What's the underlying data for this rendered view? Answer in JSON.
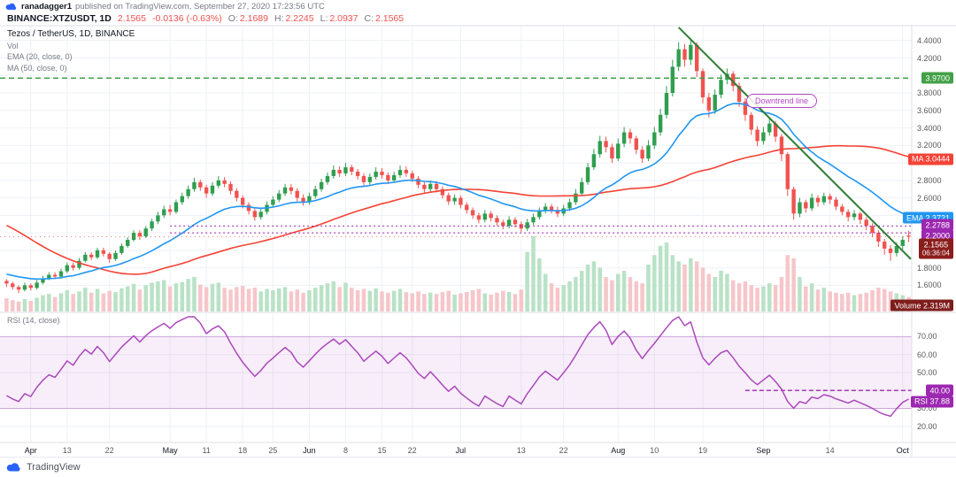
{
  "header": {
    "byline_user": "ranadagger1",
    "byline_rest": "published on TradingView.com, September 27, 2020 17:23:56 UTC",
    "symbol": "BINANCE:XTZUSDT, 1D",
    "last_price": "2.1565",
    "change": "-0.0136 (-0.63%)",
    "o_label": "O:",
    "o": "2.1689",
    "h_label": "H:",
    "h": "2.2245",
    "l_label": "L:",
    "l": "2.0937",
    "c_label": "C:",
    "c": "2.1565"
  },
  "legend": {
    "title": "Tezos / TetherUS, 1D, BINANCE",
    "volume": "Vol",
    "ema": "EMA (20, close, 0)",
    "ma": "MA (50, close, 0)",
    "rsi": "RSI (14, close)"
  },
  "annotations": {
    "downtrend_label": "Downtrend line"
  },
  "footer": {
    "logo_text": "TradingView"
  },
  "chart_data": {
    "type": "candlestick",
    "symbol": "BINANCE:XTZUSDT",
    "timeframe": "1D",
    "price_ylim": [
      1.29,
      4.58
    ],
    "rsi_ylim": [
      12,
      82
    ],
    "price_ticks": [
      4.4,
      4.2,
      3.8,
      3.6,
      3.4,
      3.2,
      2.8,
      2.6,
      2.4,
      1.8,
      1.6
    ],
    "rsi_ticks": [
      70,
      60,
      50,
      30,
      20
    ],
    "x_labels": [
      {
        "t": "Apr",
        "i": 4
      },
      {
        "t": "13",
        "i": 10
      },
      {
        "t": "22",
        "i": 17
      },
      {
        "t": "May",
        "i": 27
      },
      {
        "t": "11",
        "i": 33
      },
      {
        "t": "18",
        "i": 39
      },
      {
        "t": "25",
        "i": 44
      },
      {
        "t": "Jun",
        "i": 50
      },
      {
        "t": "8",
        "i": 56
      },
      {
        "t": "15",
        "i": 62
      },
      {
        "t": "22",
        "i": 67
      },
      {
        "t": "Jul",
        "i": 75
      },
      {
        "t": "13",
        "i": 85
      },
      {
        "t": "22",
        "i": 92
      },
      {
        "t": "Aug",
        "i": 101
      },
      {
        "t": "10",
        "i": 107
      },
      {
        "t": "19",
        "i": 115
      },
      {
        "t": "Sep",
        "i": 125
      },
      {
        "t": "14",
        "i": 136
      },
      {
        "t": "Oct",
        "i": 148
      }
    ],
    "indicators": {
      "ema_period": 20,
      "sma_period": 50,
      "rsi_period": 14
    },
    "levels": {
      "resistance": {
        "price": 3.97,
        "label": "3.9700"
      },
      "ma_badge": {
        "value": 3.0444,
        "label": "MA 3.0444"
      },
      "ema_badge": {
        "value": 2.3721,
        "label": "EMA 2.3721"
      },
      "support_upper": {
        "price": 2.2788,
        "label": "2.2788",
        "start_index": 27
      },
      "support_lower": {
        "price": 2.2,
        "label": "2.2000",
        "start_index": 27
      },
      "last": {
        "price": 2.1565,
        "label": "2.1565",
        "countdown": "06:36:04"
      },
      "rsi_line": {
        "value": 40,
        "label": "40.00",
        "start_index": 122
      },
      "rsi_badge": {
        "value": 37.88,
        "label": "RSI 37.88"
      },
      "volume_badge": {
        "label": "Volume 2.319M"
      }
    },
    "trendline": {
      "from_index": 111,
      "from_price": 4.55,
      "to_index": 150,
      "to_price": 1.9
    },
    "colors": {
      "up": "#2f9e4f",
      "down": "#ef5350",
      "up_vol": "#b9e2c6",
      "down_vol": "#f6c6ca",
      "ema": "#2196f3",
      "ma": "#f44336",
      "trend": "#2e7d32",
      "level_green": "#43a047",
      "purple": "#9c27b0",
      "rsi": "#ab47bc",
      "rsi_band_fill": "rgba(156,39,176,0.08)",
      "rsi_band_line": "#cfa6dc",
      "last_badge": "#8b1d1d",
      "volume_badge_bg": "#7f1d1d",
      "grid": "#eef1f6",
      "separator": "#dcdfe6",
      "axis_text": "#58595b"
    },
    "warmup_closes": [
      3.3,
      3.4,
      3.5,
      3.6,
      3.7,
      3.8,
      3.7,
      3.6,
      3.5,
      3.4,
      3.3,
      3.2,
      3.1,
      3.0,
      2.9,
      2.8,
      2.9,
      2.8,
      2.7,
      2.6,
      2.5,
      2.3,
      2.1,
      1.9,
      1.5,
      1.3,
      1.4,
      1.55,
      1.65,
      1.7,
      1.6,
      1.5,
      1.55,
      1.65,
      1.75,
      1.78,
      1.72,
      1.68,
      1.7,
      1.74,
      1.72,
      1.68,
      1.65,
      1.63,
      1.66,
      1.7,
      1.68,
      1.64,
      1.6,
      1.63
    ],
    "candles": [
      [
        1.65,
        1.67,
        1.58,
        1.62
      ],
      [
        1.62,
        1.64,
        1.55,
        1.58
      ],
      [
        1.58,
        1.6,
        1.51,
        1.55
      ],
      [
        1.55,
        1.63,
        1.53,
        1.6
      ],
      [
        1.6,
        1.62,
        1.54,
        1.57
      ],
      [
        1.57,
        1.66,
        1.55,
        1.63
      ],
      [
        1.63,
        1.71,
        1.61,
        1.68
      ],
      [
        1.68,
        1.75,
        1.66,
        1.72
      ],
      [
        1.72,
        1.75,
        1.67,
        1.7
      ],
      [
        1.7,
        1.79,
        1.68,
        1.76
      ],
      [
        1.76,
        1.86,
        1.74,
        1.83
      ],
      [
        1.83,
        1.86,
        1.77,
        1.8
      ],
      [
        1.8,
        1.91,
        1.78,
        1.88
      ],
      [
        1.88,
        1.98,
        1.86,
        1.95
      ],
      [
        1.95,
        1.98,
        1.89,
        1.92
      ],
      [
        1.92,
        2.03,
        1.9,
        2.0
      ],
      [
        2.0,
        2.03,
        1.93,
        1.96
      ],
      [
        1.96,
        1.98,
        1.86,
        1.9
      ],
      [
        1.9,
        2.0,
        1.88,
        1.97
      ],
      [
        1.97,
        2.08,
        1.95,
        2.05
      ],
      [
        2.05,
        2.15,
        2.03,
        2.12
      ],
      [
        2.12,
        2.23,
        2.1,
        2.2
      ],
      [
        2.2,
        2.23,
        2.12,
        2.16
      ],
      [
        2.16,
        2.28,
        2.14,
        2.25
      ],
      [
        2.25,
        2.36,
        2.22,
        2.33
      ],
      [
        2.33,
        2.44,
        2.3,
        2.4
      ],
      [
        2.4,
        2.51,
        2.37,
        2.47
      ],
      [
        2.47,
        2.52,
        2.4,
        2.44
      ],
      [
        2.44,
        2.58,
        2.42,
        2.55
      ],
      [
        2.55,
        2.66,
        2.52,
        2.62
      ],
      [
        2.62,
        2.74,
        2.59,
        2.7
      ],
      [
        2.7,
        2.83,
        2.67,
        2.78
      ],
      [
        2.78,
        2.81,
        2.68,
        2.72
      ],
      [
        2.72,
        2.75,
        2.6,
        2.65
      ],
      [
        2.65,
        2.78,
        2.62,
        2.74
      ],
      [
        2.74,
        2.85,
        2.71,
        2.8
      ],
      [
        2.8,
        2.84,
        2.72,
        2.76
      ],
      [
        2.76,
        2.79,
        2.64,
        2.68
      ],
      [
        2.68,
        2.71,
        2.56,
        2.6
      ],
      [
        2.6,
        2.63,
        2.48,
        2.52
      ],
      [
        2.52,
        2.55,
        2.41,
        2.45
      ],
      [
        2.45,
        2.48,
        2.34,
        2.38
      ],
      [
        2.38,
        2.48,
        2.35,
        2.44
      ],
      [
        2.44,
        2.56,
        2.41,
        2.52
      ],
      [
        2.52,
        2.62,
        2.49,
        2.58
      ],
      [
        2.58,
        2.69,
        2.55,
        2.65
      ],
      [
        2.65,
        2.76,
        2.62,
        2.72
      ],
      [
        2.72,
        2.76,
        2.64,
        2.68
      ],
      [
        2.68,
        2.71,
        2.56,
        2.6
      ],
      [
        2.6,
        2.64,
        2.51,
        2.55
      ],
      [
        2.55,
        2.66,
        2.52,
        2.62
      ],
      [
        2.62,
        2.74,
        2.59,
        2.7
      ],
      [
        2.7,
        2.82,
        2.67,
        2.78
      ],
      [
        2.78,
        2.89,
        2.75,
        2.85
      ],
      [
        2.85,
        2.97,
        2.82,
        2.92
      ],
      [
        2.92,
        2.96,
        2.84,
        2.88
      ],
      [
        2.88,
        3.0,
        2.85,
        2.95
      ],
      [
        2.95,
        2.98,
        2.86,
        2.9
      ],
      [
        2.9,
        2.93,
        2.81,
        2.85
      ],
      [
        2.85,
        2.88,
        2.74,
        2.78
      ],
      [
        2.78,
        2.88,
        2.75,
        2.84
      ],
      [
        2.84,
        2.95,
        2.81,
        2.9
      ],
      [
        2.9,
        2.94,
        2.82,
        2.86
      ],
      [
        2.86,
        2.89,
        2.76,
        2.8
      ],
      [
        2.8,
        2.9,
        2.77,
        2.86
      ],
      [
        2.86,
        2.97,
        2.83,
        2.92
      ],
      [
        2.92,
        2.96,
        2.84,
        2.88
      ],
      [
        2.88,
        2.91,
        2.78,
        2.82
      ],
      [
        2.82,
        2.85,
        2.71,
        2.75
      ],
      [
        2.75,
        2.78,
        2.66,
        2.7
      ],
      [
        2.7,
        2.8,
        2.67,
        2.76
      ],
      [
        2.76,
        2.79,
        2.66,
        2.7
      ],
      [
        2.7,
        2.73,
        2.59,
        2.63
      ],
      [
        2.63,
        2.66,
        2.52,
        2.56
      ],
      [
        2.56,
        2.64,
        2.52,
        2.6
      ],
      [
        2.6,
        2.63,
        2.48,
        2.52
      ],
      [
        2.52,
        2.55,
        2.42,
        2.46
      ],
      [
        2.46,
        2.49,
        2.36,
        2.4
      ],
      [
        2.4,
        2.43,
        2.31,
        2.35
      ],
      [
        2.35,
        2.46,
        2.32,
        2.42
      ],
      [
        2.42,
        2.45,
        2.33,
        2.37
      ],
      [
        2.37,
        2.4,
        2.28,
        2.32
      ],
      [
        2.32,
        2.35,
        2.24,
        2.28
      ],
      [
        2.28,
        2.39,
        2.25,
        2.35
      ],
      [
        2.35,
        2.38,
        2.26,
        2.3
      ],
      [
        2.3,
        2.33,
        2.21,
        2.25
      ],
      [
        2.25,
        2.36,
        2.22,
        2.32
      ],
      [
        2.32,
        2.42,
        2.29,
        2.38
      ],
      [
        2.38,
        2.49,
        2.35,
        2.45
      ],
      [
        2.45,
        2.54,
        2.42,
        2.5
      ],
      [
        2.5,
        2.53,
        2.42,
        2.46
      ],
      [
        2.46,
        2.5,
        2.38,
        2.42
      ],
      [
        2.42,
        2.52,
        2.39,
        2.48
      ],
      [
        2.48,
        2.59,
        2.45,
        2.55
      ],
      [
        2.55,
        2.7,
        2.52,
        2.65
      ],
      [
        2.65,
        2.83,
        2.62,
        2.78
      ],
      [
        2.78,
        3.0,
        2.75,
        2.95
      ],
      [
        2.95,
        3.16,
        2.92,
        3.1
      ],
      [
        3.1,
        3.31,
        3.06,
        3.25
      ],
      [
        3.25,
        3.3,
        3.12,
        3.18
      ],
      [
        3.18,
        3.22,
        3.0,
        3.05
      ],
      [
        3.05,
        3.28,
        3.02,
        3.22
      ],
      [
        3.22,
        3.41,
        3.18,
        3.35
      ],
      [
        3.35,
        3.39,
        3.22,
        3.28
      ],
      [
        3.28,
        3.31,
        3.1,
        3.15
      ],
      [
        3.15,
        3.19,
        3.0,
        3.05
      ],
      [
        3.05,
        3.26,
        3.02,
        3.2
      ],
      [
        3.2,
        3.41,
        3.16,
        3.35
      ],
      [
        3.35,
        3.62,
        3.31,
        3.55
      ],
      [
        3.55,
        3.88,
        3.51,
        3.8
      ],
      [
        3.8,
        4.18,
        3.76,
        4.1
      ],
      [
        4.1,
        4.38,
        4.05,
        4.3
      ],
      [
        4.3,
        4.36,
        4.1,
        4.18
      ],
      [
        4.18,
        4.42,
        4.12,
        4.35
      ],
      [
        4.35,
        4.38,
        3.98,
        4.05
      ],
      [
        4.05,
        4.08,
        3.68,
        3.75
      ],
      [
        3.75,
        3.8,
        3.52,
        3.6
      ],
      [
        3.6,
        3.84,
        3.56,
        3.78
      ],
      [
        3.78,
        4.01,
        3.74,
        3.95
      ],
      [
        3.95,
        4.08,
        3.9,
        4.02
      ],
      [
        4.02,
        4.05,
        3.82,
        3.88
      ],
      [
        3.88,
        3.92,
        3.64,
        3.7
      ],
      [
        3.7,
        3.74,
        3.48,
        3.55
      ],
      [
        3.55,
        3.58,
        3.32,
        3.38
      ],
      [
        3.38,
        3.42,
        3.19,
        3.25
      ],
      [
        3.25,
        3.41,
        3.21,
        3.35
      ],
      [
        3.35,
        3.51,
        3.31,
        3.45
      ],
      [
        3.45,
        3.48,
        3.24,
        3.3
      ],
      [
        3.3,
        3.33,
        3.02,
        3.1
      ],
      [
        3.1,
        3.12,
        2.62,
        2.7
      ],
      [
        2.7,
        2.73,
        2.35,
        2.42
      ],
      [
        2.42,
        2.6,
        2.38,
        2.55
      ],
      [
        2.55,
        2.58,
        2.43,
        2.48
      ],
      [
        2.48,
        2.65,
        2.45,
        2.6
      ],
      [
        2.6,
        2.63,
        2.5,
        2.55
      ],
      [
        2.55,
        2.66,
        2.52,
        2.62
      ],
      [
        2.62,
        2.65,
        2.53,
        2.58
      ],
      [
        2.58,
        2.61,
        2.46,
        2.5
      ],
      [
        2.5,
        2.53,
        2.4,
        2.44
      ],
      [
        2.44,
        2.47,
        2.33,
        2.38
      ],
      [
        2.38,
        2.46,
        2.34,
        2.42
      ],
      [
        2.42,
        2.44,
        2.3,
        2.35
      ],
      [
        2.35,
        2.38,
        2.23,
        2.28
      ],
      [
        2.28,
        2.31,
        2.15,
        2.2
      ],
      [
        2.2,
        2.23,
        2.04,
        2.1
      ],
      [
        2.1,
        2.13,
        1.95,
        2.02
      ],
      [
        2.02,
        2.06,
        1.88,
        1.97
      ],
      [
        1.97,
        2.09,
        1.93,
        2.05
      ],
      [
        2.05,
        2.16,
        2.01,
        2.12
      ],
      [
        2.1689,
        2.2245,
        2.0937,
        2.1565
      ]
    ],
    "volumes": [
      2.1,
      1.8,
      1.6,
      2.0,
      1.7,
      2.2,
      2.6,
      2.8,
      2.3,
      2.9,
      3.4,
      2.8,
      3.2,
      3.8,
      3.0,
      3.6,
      2.9,
      3.3,
      3.1,
      3.7,
      4.0,
      4.4,
      3.5,
      4.2,
      4.6,
      4.8,
      5.0,
      4.0,
      4.5,
      4.7,
      5.2,
      5.5,
      4.3,
      3.9,
      4.4,
      4.6,
      3.8,
      3.5,
      3.9,
      4.1,
      3.6,
      3.8,
      3.2,
      3.6,
      3.4,
      3.7,
      3.9,
      3.2,
      3.5,
      3.0,
      3.4,
      3.8,
      4.2,
      4.5,
      4.8,
      3.9,
      4.6,
      3.8,
      3.4,
      3.6,
      3.3,
      3.7,
      3.2,
      3.0,
      3.3,
      3.6,
      3.1,
      2.9,
      3.2,
      2.8,
      3.0,
      2.8,
      3.1,
      3.3,
      2.7,
      2.9,
      3.1,
      3.4,
      3.6,
      2.9,
      2.7,
      3.0,
      3.3,
      3.1,
      2.8,
      3.5,
      9.5,
      12.0,
      8.5,
      6.0,
      4.5,
      3.8,
      4.2,
      4.8,
      5.5,
      6.5,
      7.5,
      8.0,
      7.0,
      5.5,
      5.0,
      6.0,
      6.5,
      5.5,
      4.8,
      4.5,
      7.5,
      9.0,
      10.5,
      11.0,
      9.0,
      8.0,
      7.5,
      8.5,
      8.0,
      7.0,
      6.0,
      5.5,
      6.5,
      6.0,
      5.0,
      4.5,
      4.8,
      4.2,
      3.8,
      4.0,
      4.5,
      4.2,
      5.5,
      9.0,
      8.5,
      5.5,
      4.0,
      4.5,
      3.5,
      3.8,
      3.2,
      3.0,
      2.8,
      3.0,
      2.6,
      2.8,
      3.0,
      3.4,
      3.8,
      3.6,
      3.2,
      2.9,
      2.6,
      2.319
    ]
  }
}
